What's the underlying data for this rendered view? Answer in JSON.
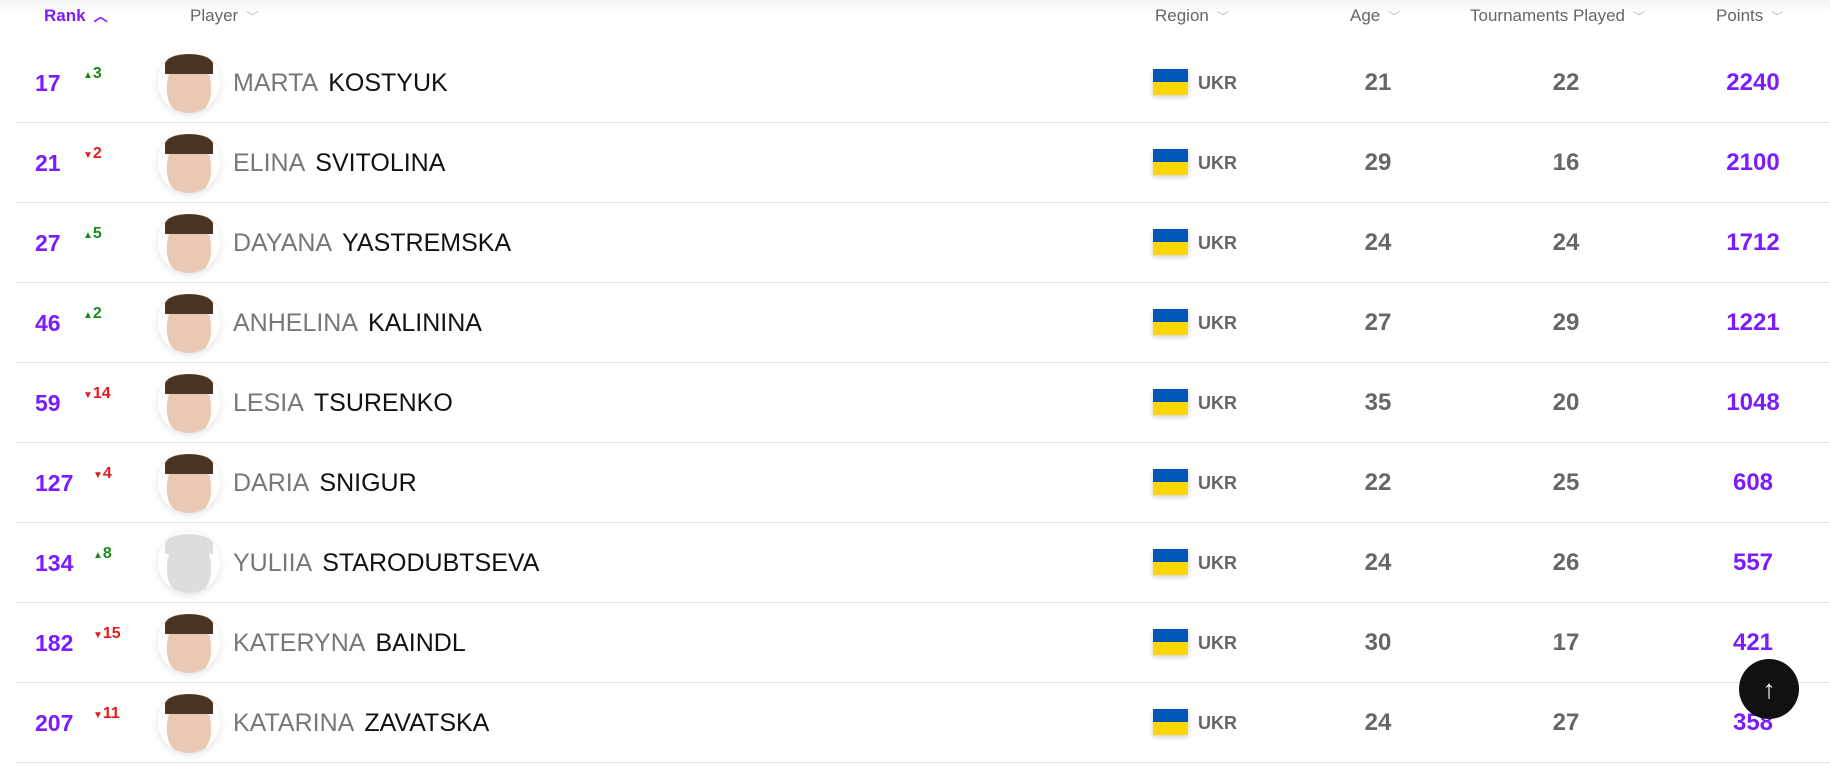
{
  "header": {
    "rank": "Rank",
    "player": "Player",
    "region": "Region",
    "age": "Age",
    "tournaments": "Tournaments Played",
    "points": "Points"
  },
  "colors": {
    "accent": "#7b1cff",
    "up": "#1a8a1a",
    "down": "#e41b1b"
  },
  "rows": [
    {
      "rank": "17",
      "change": "3",
      "dir": "up",
      "first": "MARTA",
      "last": "KOSTYUK",
      "region": "UKR",
      "age": "21",
      "tournaments": "22",
      "points": "2240"
    },
    {
      "rank": "21",
      "change": "2",
      "dir": "down",
      "first": "ELINA",
      "last": "SVITOLINA",
      "region": "UKR",
      "age": "29",
      "tournaments": "16",
      "points": "2100"
    },
    {
      "rank": "27",
      "change": "5",
      "dir": "up",
      "first": "DAYANA",
      "last": "YASTREMSKA",
      "region": "UKR",
      "age": "24",
      "tournaments": "24",
      "points": "1712"
    },
    {
      "rank": "46",
      "change": "2",
      "dir": "up",
      "first": "ANHELINA",
      "last": "KALININA",
      "region": "UKR",
      "age": "27",
      "tournaments": "29",
      "points": "1221"
    },
    {
      "rank": "59",
      "change": "14",
      "dir": "down",
      "first": "LESIA",
      "last": "TSURENKO",
      "region": "UKR",
      "age": "35",
      "tournaments": "20",
      "points": "1048"
    },
    {
      "rank": "127",
      "change": "4",
      "dir": "down",
      "first": "DARIA",
      "last": "SNIGUR",
      "region": "UKR",
      "age": "22",
      "tournaments": "25",
      "points": "608"
    },
    {
      "rank": "134",
      "change": "8",
      "dir": "up",
      "first": "YULIIA",
      "last": "STARODUBTSEVA",
      "region": "UKR",
      "age": "24",
      "tournaments": "26",
      "points": "557",
      "no_photo": true
    },
    {
      "rank": "182",
      "change": "15",
      "dir": "down",
      "first": "KATERYNA",
      "last": "BAINDL",
      "region": "UKR",
      "age": "30",
      "tournaments": "17",
      "points": "421"
    },
    {
      "rank": "207",
      "change": "11",
      "dir": "down",
      "first": "KATARINA",
      "last": "ZAVATSKA",
      "region": "UKR",
      "age": "24",
      "tournaments": "27",
      "points": "358"
    }
  ],
  "scroll_top_icon": "arrow-up-icon"
}
